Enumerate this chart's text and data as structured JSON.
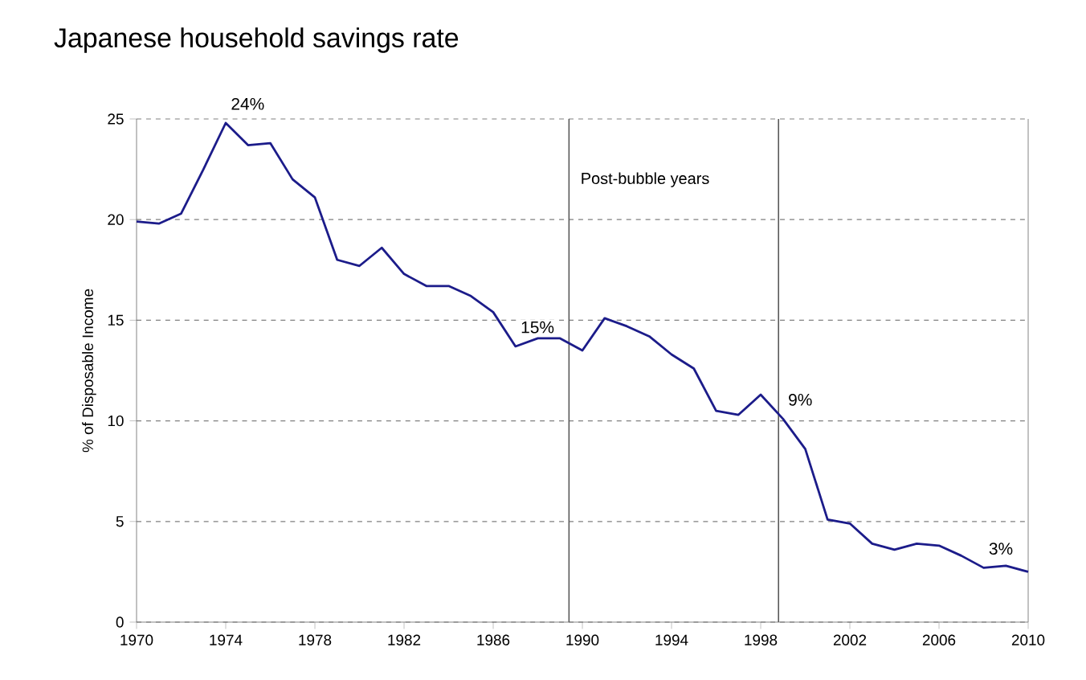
{
  "chart_data": {
    "type": "line",
    "title": "Japanese household savings rate",
    "ylabel": "% of Disposable Income",
    "x": [
      1970,
      1971,
      1972,
      1973,
      1974,
      1975,
      1976,
      1977,
      1978,
      1979,
      1980,
      1981,
      1982,
      1983,
      1984,
      1985,
      1986,
      1987,
      1988,
      1989,
      1990,
      1991,
      1992,
      1993,
      1994,
      1995,
      1996,
      1997,
      1998,
      1999,
      2000,
      2001,
      2002,
      2003,
      2004,
      2005,
      2006,
      2007,
      2008,
      2009,
      2010
    ],
    "series": [
      {
        "color": "#1c1c8a",
        "values": [
          19.9,
          19.8,
          20.3,
          22.5,
          24.8,
          23.7,
          23.8,
          22.0,
          21.1,
          18.0,
          17.7,
          18.6,
          17.3,
          16.7,
          16.7,
          16.2,
          15.4,
          13.7,
          14.1,
          14.1,
          13.5,
          15.1,
          14.7,
          14.2,
          13.3,
          12.6,
          10.5,
          10.3,
          11.3,
          10.1,
          8.6,
          5.1,
          4.9,
          3.9,
          3.6,
          3.9,
          3.8,
          3.3,
          2.7,
          2.8,
          2.5
        ]
      }
    ],
    "xlim": [
      1970,
      2010
    ],
    "ylim": [
      0,
      25
    ],
    "xticks": [
      1970,
      1974,
      1978,
      1982,
      1986,
      1990,
      1994,
      1998,
      2002,
      2006,
      2010
    ],
    "yticks": [
      0,
      5,
      10,
      15,
      20,
      25
    ],
    "grid": "y",
    "marker": "none",
    "line_style": "solid",
    "ref_lines": [
      {
        "axis": "x",
        "value": 1989.4,
        "label": "Post-bubble years"
      },
      {
        "axis": "x",
        "value": 1998.8
      }
    ],
    "annotations": [
      {
        "text": "24%",
        "x": 1974,
        "y": 24.8
      },
      {
        "text": "15%",
        "x": 1987,
        "y": 13.7
      },
      {
        "text": "9%",
        "x": 1999,
        "y": 10.1
      },
      {
        "text": "3%",
        "x": 2008,
        "y": 2.7
      }
    ]
  }
}
